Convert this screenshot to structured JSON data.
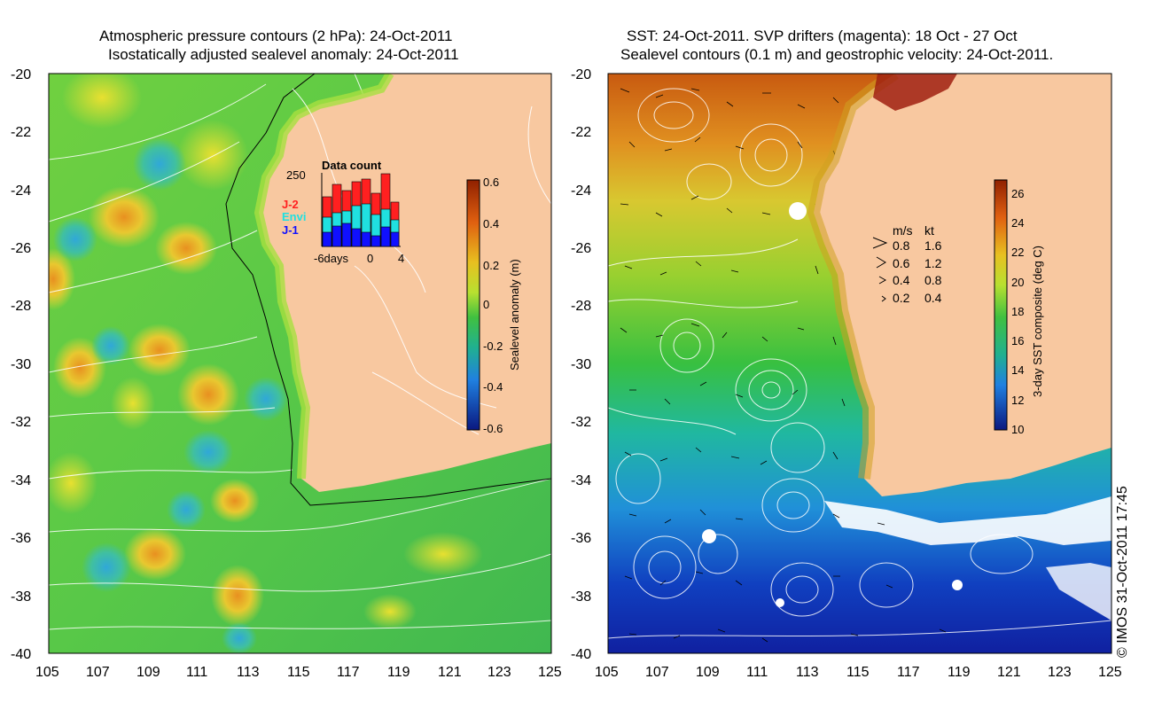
{
  "left_panel": {
    "title_line1": "Atmospheric pressure contours (2 hPa): 24-Oct-2011",
    "title_line2": "Isostatically adjusted sealevel anomaly: 24-Oct-2011",
    "y_ticks": [
      "-20",
      "-22",
      "-24",
      "-26",
      "-28",
      "-30",
      "-32",
      "-34",
      "-36",
      "-38",
      "-40"
    ],
    "x_ticks": [
      "105",
      "107",
      "109",
      "111",
      "113",
      "115",
      "117",
      "119",
      "121",
      "123",
      "125"
    ],
    "colorbar": {
      "label": "Sealevel anomaly (m)",
      "ticks": [
        "0.6",
        "0.4",
        "0.2",
        "0",
        "-0.2",
        "-0.4",
        "-0.6"
      ]
    },
    "data_count": {
      "title": "Data count",
      "ymax_label": "250",
      "x_labels": [
        "-6days",
        "0",
        "4"
      ],
      "legend": [
        "J-2",
        "Envi",
        "J-1"
      ],
      "legend_colors": [
        "#ff2020",
        "#20e0e0",
        "#1010ff"
      ]
    }
  },
  "right_panel": {
    "title_line1": "SST: 24-Oct-2011. SVP drifters (magenta): 18 Oct - 27 Oct",
    "title_line2": "Sealevel contours (0.1 m) and geostrophic velocity: 24-Oct-2011.",
    "y_ticks": [
      "-20",
      "-22",
      "-24",
      "-26",
      "-28",
      "-30",
      "-32",
      "-34",
      "-36",
      "-38",
      "-40"
    ],
    "x_ticks": [
      "105",
      "107",
      "109",
      "111",
      "113",
      "115",
      "117",
      "119",
      "121",
      "123",
      "125"
    ],
    "colorbar": {
      "label": "3-day SST composite (deg C)",
      "ticks": [
        "26",
        "24",
        "22",
        "20",
        "18",
        "16",
        "14",
        "12",
        "10"
      ]
    },
    "velocity_legend": {
      "header_ms": "m/s",
      "header_kt": "kt",
      "rows": [
        {
          "ms": "0.8",
          "kt": "1.6"
        },
        {
          "ms": "0.6",
          "kt": "1.2"
        },
        {
          "ms": "0.4",
          "kt": "0.8"
        },
        {
          "ms": "0.2",
          "kt": "0.4"
        }
      ]
    }
  },
  "credit": "© IMOS 31-Oct-2011 17:45",
  "colors": {
    "land": "#f8c8a0",
    "ocean_green": "#40c840",
    "warm_sst": "#d86a10",
    "cold_sst": "#1030b0"
  }
}
